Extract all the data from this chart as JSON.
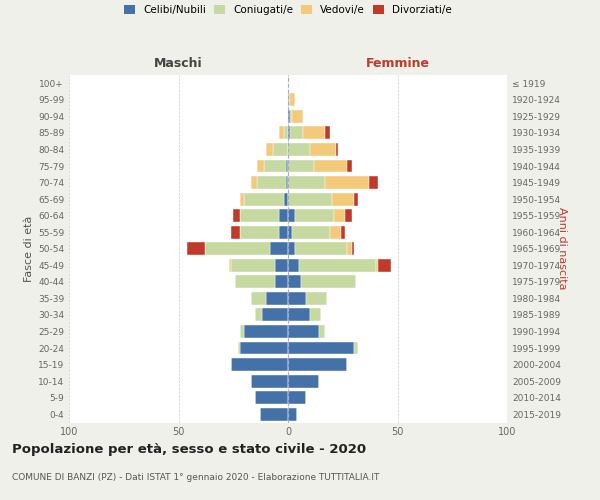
{
  "age_groups_display": [
    "0-4",
    "5-9",
    "10-14",
    "15-19",
    "20-24",
    "25-29",
    "30-34",
    "35-39",
    "40-44",
    "45-49",
    "50-54",
    "55-59",
    "60-64",
    "65-69",
    "70-74",
    "75-79",
    "80-84",
    "85-89",
    "90-94",
    "95-99",
    "100+"
  ],
  "birth_years_display": [
    "2015-2019",
    "2010-2014",
    "2005-2009",
    "2000-2004",
    "1995-1999",
    "1990-1994",
    "1985-1989",
    "1980-1984",
    "1975-1979",
    "1970-1974",
    "1965-1969",
    "1960-1964",
    "1955-1959",
    "1950-1954",
    "1945-1949",
    "1940-1944",
    "1935-1939",
    "1930-1934",
    "1925-1929",
    "1920-1924",
    "≤ 1919"
  ],
  "colors": {
    "celibi": "#4472a8",
    "coniugati": "#c5d9a0",
    "vedovi": "#f5c97a",
    "divorziati": "#c0392b"
  },
  "males": {
    "celibi": [
      13,
      15,
      17,
      26,
      22,
      20,
      12,
      10,
      6,
      6,
      8,
      4,
      4,
      2,
      1,
      1,
      0,
      0,
      0,
      0,
      0
    ],
    "coniugati": [
      0,
      0,
      0,
      0,
      1,
      2,
      3,
      7,
      18,
      20,
      30,
      18,
      18,
      18,
      13,
      10,
      7,
      2,
      0,
      0,
      0
    ],
    "vedovi": [
      0,
      0,
      0,
      0,
      0,
      0,
      0,
      0,
      0,
      1,
      0,
      0,
      0,
      2,
      3,
      3,
      3,
      2,
      0,
      0,
      0
    ],
    "divorziati": [
      0,
      0,
      0,
      0,
      0,
      0,
      0,
      0,
      0,
      0,
      8,
      4,
      3,
      0,
      0,
      0,
      0,
      0,
      0,
      0,
      0
    ]
  },
  "females": {
    "celibi": [
      4,
      8,
      14,
      27,
      30,
      14,
      10,
      8,
      6,
      5,
      3,
      2,
      3,
      0,
      0,
      0,
      0,
      1,
      1,
      0,
      0
    ],
    "coniugati": [
      0,
      0,
      0,
      0,
      2,
      3,
      5,
      10,
      25,
      35,
      24,
      17,
      18,
      20,
      17,
      12,
      10,
      6,
      1,
      1,
      0
    ],
    "vedovi": [
      0,
      0,
      0,
      0,
      0,
      0,
      0,
      0,
      0,
      1,
      2,
      5,
      5,
      10,
      20,
      15,
      12,
      10,
      5,
      2,
      0
    ],
    "divorziati": [
      0,
      0,
      0,
      0,
      0,
      0,
      0,
      0,
      0,
      6,
      1,
      2,
      3,
      2,
      4,
      2,
      1,
      2,
      0,
      0,
      0
    ]
  },
  "title": "Popolazione per età, sesso e stato civile - 2020",
  "subtitle": "COMUNE DI BANZI (PZ) - Dati ISTAT 1° gennaio 2020 - Elaborazione TUTTITALIA.IT",
  "xlabel_left": "Maschi",
  "xlabel_right": "Femmine",
  "ylabel_left": "Fasce di età",
  "ylabel_right": "Anni di nascita",
  "xlim": 100,
  "bg_color": "#f0f0eb",
  "plot_bg": "#ffffff"
}
